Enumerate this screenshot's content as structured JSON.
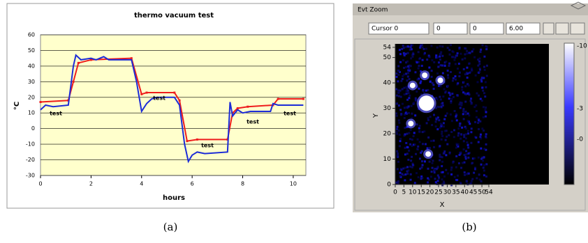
{
  "chart_data": [
    {
      "type": "line",
      "title": "thermo vacuum test",
      "xlabel": "hours",
      "ylabel": "°C",
      "xlim": [
        0,
        10.5
      ],
      "xticks": [
        0,
        2,
        4,
        6,
        8,
        10
      ],
      "ylim": [
        -30,
        60
      ],
      "yticks": [
        -30,
        -20,
        -10,
        0,
        10,
        20,
        30,
        40,
        50,
        60
      ],
      "grid": true,
      "background": "#ffffcc",
      "series": [
        {
          "color": "#ee1c1c",
          "x": [
            0,
            1.1,
            1.3,
            1.5,
            2,
            3.6,
            4,
            4.2,
            5.3,
            5.5,
            5.8,
            6.2,
            7.4,
            7.6,
            7.8,
            8.2,
            9.2,
            9.4,
            10.4
          ],
          "values": [
            17,
            18,
            30,
            42,
            44,
            45,
            22,
            23,
            23,
            18,
            -8,
            -7,
            -7,
            10,
            13,
            14,
            15,
            19,
            19
          ]
        },
        {
          "color": "#1c2bd6",
          "x": [
            0,
            0.2,
            0.5,
            1.1,
            1.3,
            1.4,
            1.6,
            2,
            2.2,
            2.5,
            2.7,
            3.6,
            3.8,
            4,
            4.2,
            4.4,
            4.6,
            5.3,
            5.5,
            5.7,
            5.85,
            6,
            6.2,
            6.5,
            7.4,
            7.5,
            7.6,
            7.8,
            8,
            8.3,
            9.1,
            9.2,
            9.4,
            10.4
          ],
          "values": [
            12,
            15,
            14,
            15,
            40,
            47,
            44,
            45,
            44,
            46,
            44,
            44,
            30,
            11,
            16,
            19,
            20,
            20,
            15,
            -10,
            -21,
            -17,
            -15,
            -16,
            -15,
            17,
            8,
            12,
            10,
            11,
            11,
            16,
            15,
            15
          ]
        }
      ],
      "annotations": [
        "test",
        "test",
        "test",
        "test",
        "test"
      ]
    },
    {
      "type": "scatter",
      "xlabel": "X",
      "ylabel": "Y",
      "xlim": [
        0,
        54
      ],
      "xticks": [
        0,
        5,
        10,
        15,
        20,
        25,
        30,
        35,
        40,
        45,
        50,
        54
      ],
      "ylim": [
        0,
        54
      ],
      "yticks": [
        0,
        10,
        20,
        30,
        40,
        50,
        54
      ],
      "series": [
        {
          "color": "#ffffff",
          "x": [
            18,
            17,
            10,
            26,
            9,
            19
          ],
          "values": [
            32,
            43,
            39,
            41,
            24,
            12
          ]
        }
      ],
      "colorbar_labels": [
        "-10",
        "-3",
        "-0"
      ]
    }
  ],
  "ui": {
    "panel_title": "Evt Zoom",
    "fields": [
      "Cursor 0",
      "0",
      "0",
      "6.00"
    ]
  },
  "captions": [
    "(a)",
    "(b)"
  ]
}
